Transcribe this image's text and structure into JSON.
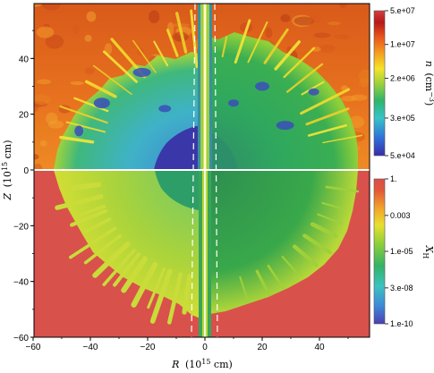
{
  "chart_data": {
    "type": "heatmap",
    "title": "",
    "xlabel": {
      "sym": "R",
      "unit": "(10",
      "exp": "15",
      "unit2": " cm)"
    },
    "ylabel": {
      "sym": "Z",
      "unit": "(10",
      "exp": "15",
      "unit2": " cm)"
    },
    "xlim": [
      -60,
      60
    ],
    "ylim": [
      -60,
      60
    ],
    "x_ticks": [
      -60,
      -40,
      -20,
      0,
      20,
      40
    ],
    "x_tick_labels": [
      "−60",
      "−40",
      "−20",
      "0",
      "20",
      "40"
    ],
    "y_ticks": [
      -60,
      -40,
      -20,
      0,
      20,
      40
    ],
    "y_tick_labels": [
      "−60",
      "−40",
      "−20",
      "0",
      "20",
      "40"
    ],
    "panels": [
      {
        "region": "upper half (Z > 0)",
        "quantity": "number density"
      },
      {
        "region": "lower half (Z < 0)",
        "quantity": "hydrogen mass fraction"
      }
    ],
    "colorbars": [
      {
        "label": {
          "sym": "n",
          "unit": "(cm",
          "exp": "−3",
          "close": ")"
        },
        "scale": "log",
        "range": [
          50000,
          50000000
        ],
        "ticks": [
          {
            "value": 50000000,
            "label": "5.e+07"
          },
          {
            "value": 10000000,
            "label": "1.e+07"
          },
          {
            "value": 2000000,
            "label": "2.e+06"
          },
          {
            "value": 300000,
            "label": "3.e+05"
          },
          {
            "value": 50000,
            "label": "5.e+04"
          }
        ],
        "colors": [
          "#3a2aa8",
          "#2f6fd8",
          "#36c4c8",
          "#2fb56a",
          "#9fd23a",
          "#f5e32a",
          "#f5a21e",
          "#e8541c",
          "#b81818",
          "#8c1414"
        ]
      },
      {
        "label": {
          "sym": "X",
          "sub": "H"
        },
        "scale": "log",
        "range": [
          1e-10,
          1
        ],
        "ticks": [
          {
            "value": 1,
            "label": "1."
          },
          {
            "value": 0.003,
            "label": "0.003"
          },
          {
            "value": 1e-05,
            "label": "1.e-05"
          },
          {
            "value": 3e-08,
            "label": "3.e-08"
          },
          {
            "value": 1e-10,
            "label": "1.e-10"
          }
        ],
        "colors": [
          "#4a3fb0",
          "#3f86d8",
          "#3bc3c0",
          "#34b267",
          "#8ccf3a",
          "#e8e030",
          "#f2a22a",
          "#e2583a",
          "#d94f4a"
        ]
      }
    ],
    "colors": {
      "outer_envelope": "#e56a1e",
      "lower_background": "#d9514b",
      "bubble_green": "#34a85a",
      "bubble_yellow": "#c9dc3a",
      "cavity_blue": "#3a4fb8"
    }
  }
}
